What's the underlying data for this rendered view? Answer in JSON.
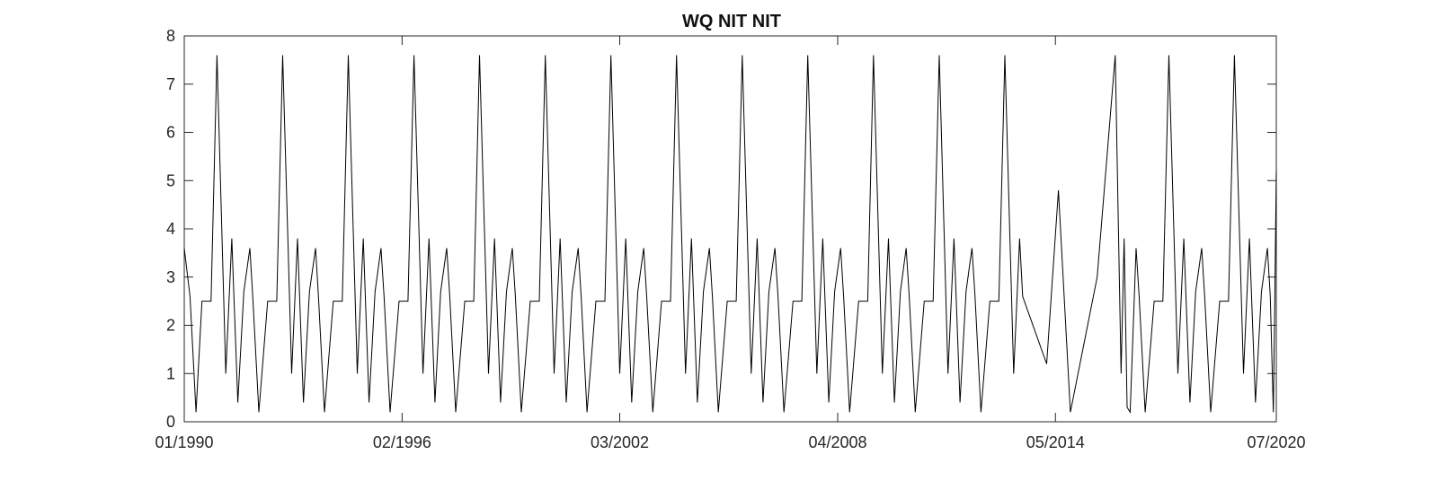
{
  "chart_data": {
    "type": "line",
    "title": "WQ NIT NIT",
    "xlabel": "",
    "ylabel": "",
    "xlim": [
      "1990-01-01",
      "2020-07-01"
    ],
    "ylim": [
      0,
      8
    ],
    "x_ticks": [
      "01/1990",
      "02/1996",
      "03/2002",
      "04/2008",
      "05/2014",
      "07/2020"
    ],
    "y_ticks": [
      "0",
      "1",
      "2",
      "3",
      "4",
      "5",
      "6",
      "7",
      "8"
    ],
    "grid": false,
    "box": true,
    "colors": {
      "line": "#000000",
      "axis": "#262626",
      "background": "#ffffff"
    },
    "pattern_note": "Annual pattern repeats; each point is [date, value].",
    "series": [
      {
        "values": [
          [
            "1990-01-01",
            3.6
          ],
          [
            "1990-03-01",
            2.6
          ],
          [
            "1990-05-01",
            0.2
          ],
          [
            "1990-07-01",
            2.5
          ],
          [
            "1990-10-01",
            2.5
          ],
          [
            "1990-12-01",
            7.6
          ],
          [
            "1991-03-01",
            1.0
          ],
          [
            "1991-05-01",
            3.8
          ],
          [
            "1991-07-01",
            0.4
          ],
          [
            "1991-09-01",
            2.7
          ],
          [
            "1991-11-01",
            3.6
          ],
          [
            "1991-12-01",
            2.6
          ],
          [
            "1992-02-01",
            0.2
          ],
          [
            "1992-05-01",
            2.5
          ],
          [
            "1992-08-01",
            2.5
          ],
          [
            "1992-10-01",
            7.6
          ],
          [
            "1993-01-01",
            1.0
          ],
          [
            "1993-03-01",
            3.8
          ],
          [
            "1993-05-01",
            0.4
          ],
          [
            "1993-07-01",
            2.7
          ],
          [
            "1993-09-01",
            3.6
          ],
          [
            "1993-10-01",
            2.6
          ],
          [
            "1993-12-01",
            0.2
          ],
          [
            "1994-03-01",
            2.5
          ],
          [
            "1994-06-01",
            2.5
          ],
          [
            "1994-08-01",
            7.6
          ],
          [
            "1994-11-01",
            1.0
          ],
          [
            "1995-01-01",
            3.8
          ],
          [
            "1995-03-01",
            0.4
          ],
          [
            "1995-05-01",
            2.7
          ],
          [
            "1995-07-01",
            3.6
          ],
          [
            "1995-08-01",
            2.6
          ],
          [
            "1995-10-01",
            0.2
          ],
          [
            "1996-01-01",
            2.5
          ],
          [
            "1996-04-01",
            2.5
          ],
          [
            "1996-06-01",
            7.6
          ],
          [
            "1996-09-01",
            1.0
          ],
          [
            "1996-11-01",
            3.8
          ],
          [
            "1997-01-01",
            0.4
          ],
          [
            "1997-03-01",
            2.7
          ],
          [
            "1997-05-01",
            3.6
          ],
          [
            "1997-06-01",
            2.6
          ],
          [
            "1997-08-01",
            0.2
          ],
          [
            "1997-11-01",
            2.5
          ],
          [
            "1998-02-01",
            2.5
          ],
          [
            "1998-04-01",
            7.6
          ],
          [
            "1998-07-01",
            1.0
          ],
          [
            "1998-09-01",
            3.8
          ],
          [
            "1998-11-01",
            0.4
          ],
          [
            "1999-01-01",
            2.7
          ],
          [
            "1999-03-01",
            3.6
          ],
          [
            "1999-04-01",
            2.6
          ],
          [
            "1999-06-01",
            0.2
          ],
          [
            "1999-09-01",
            2.5
          ],
          [
            "1999-12-01",
            2.5
          ],
          [
            "2000-02-01",
            7.6
          ],
          [
            "2000-05-01",
            1.0
          ],
          [
            "2000-07-01",
            3.8
          ],
          [
            "2000-09-01",
            0.4
          ],
          [
            "2000-11-01",
            2.7
          ],
          [
            "2001-01-01",
            3.6
          ],
          [
            "2001-02-01",
            2.6
          ],
          [
            "2001-04-01",
            0.2
          ],
          [
            "2001-07-01",
            2.5
          ],
          [
            "2001-10-01",
            2.5
          ],
          [
            "2001-12-01",
            7.6
          ],
          [
            "2002-03-01",
            1.0
          ],
          [
            "2002-05-01",
            3.8
          ],
          [
            "2002-07-01",
            0.4
          ],
          [
            "2002-09-01",
            2.7
          ],
          [
            "2002-11-01",
            3.6
          ],
          [
            "2002-12-01",
            2.6
          ],
          [
            "2003-02-01",
            0.2
          ],
          [
            "2003-05-01",
            2.5
          ],
          [
            "2003-08-01",
            2.5
          ],
          [
            "2003-10-01",
            7.6
          ],
          [
            "2004-01-01",
            1.0
          ],
          [
            "2004-03-01",
            3.8
          ],
          [
            "2004-05-01",
            0.4
          ],
          [
            "2004-07-01",
            2.7
          ],
          [
            "2004-09-01",
            3.6
          ],
          [
            "2004-10-01",
            2.6
          ],
          [
            "2004-12-01",
            0.2
          ],
          [
            "2005-03-01",
            2.5
          ],
          [
            "2005-06-01",
            2.5
          ],
          [
            "2005-08-01",
            7.6
          ],
          [
            "2005-11-01",
            1.0
          ],
          [
            "2006-01-01",
            3.8
          ],
          [
            "2006-03-01",
            0.4
          ],
          [
            "2006-05-01",
            2.7
          ],
          [
            "2006-07-01",
            3.6
          ],
          [
            "2006-08-01",
            2.6
          ],
          [
            "2006-10-01",
            0.2
          ],
          [
            "2007-01-01",
            2.5
          ],
          [
            "2007-04-01",
            2.5
          ],
          [
            "2007-06-01",
            7.6
          ],
          [
            "2007-09-01",
            1.0
          ],
          [
            "2007-11-01",
            3.8
          ],
          [
            "2008-01-01",
            0.4
          ],
          [
            "2008-03-01",
            2.7
          ],
          [
            "2008-05-01",
            3.6
          ],
          [
            "2008-06-01",
            2.6
          ],
          [
            "2008-08-01",
            0.2
          ],
          [
            "2008-11-01",
            2.5
          ],
          [
            "2009-02-01",
            2.5
          ],
          [
            "2009-04-01",
            7.6
          ],
          [
            "2009-07-01",
            1.0
          ],
          [
            "2009-09-01",
            3.8
          ],
          [
            "2009-11-01",
            0.4
          ],
          [
            "2010-01-01",
            2.7
          ],
          [
            "2010-03-01",
            3.6
          ],
          [
            "2010-04-01",
            2.6
          ],
          [
            "2010-06-01",
            0.2
          ],
          [
            "2010-09-01",
            2.5
          ],
          [
            "2010-12-01",
            2.5
          ],
          [
            "2011-02-01",
            7.6
          ],
          [
            "2011-05-01",
            1.0
          ],
          [
            "2011-07-01",
            3.8
          ],
          [
            "2011-09-01",
            0.4
          ],
          [
            "2011-11-01",
            2.7
          ],
          [
            "2012-01-01",
            3.6
          ],
          [
            "2012-02-01",
            2.6
          ],
          [
            "2012-04-01",
            0.2
          ],
          [
            "2012-07-01",
            2.5
          ],
          [
            "2012-10-01",
            2.5
          ],
          [
            "2012-12-01",
            7.6
          ],
          [
            "2013-03-01",
            1.0
          ],
          [
            "2013-05-01",
            3.8
          ],
          [
            "2013-06-01",
            2.6
          ],
          [
            "2014-02-01",
            1.2
          ],
          [
            "2014-06-01",
            4.8
          ],
          [
            "2014-10-01",
            0.2
          ],
          [
            "2015-07-01",
            3.0
          ],
          [
            "2016-01-01",
            7.6
          ],
          [
            "2016-03-01",
            1.0
          ],
          [
            "2016-04-01",
            3.8
          ],
          [
            "2016-05-01",
            0.3
          ],
          [
            "2016-06-01",
            0.2
          ],
          [
            "2016-08-01",
            3.6
          ],
          [
            "2016-09-01",
            2.6
          ],
          [
            "2016-11-01",
            0.2
          ],
          [
            "2017-02-01",
            2.5
          ],
          [
            "2017-05-01",
            2.5
          ],
          [
            "2017-07-01",
            7.6
          ],
          [
            "2017-10-01",
            1.0
          ],
          [
            "2017-12-01",
            3.8
          ],
          [
            "2018-02-01",
            0.4
          ],
          [
            "2018-04-01",
            2.7
          ],
          [
            "2018-06-01",
            3.6
          ],
          [
            "2018-07-01",
            2.6
          ],
          [
            "2018-09-01",
            0.2
          ],
          [
            "2018-12-01",
            2.5
          ],
          [
            "2019-03-01",
            2.5
          ],
          [
            "2019-05-01",
            7.6
          ],
          [
            "2019-08-01",
            1.0
          ],
          [
            "2019-10-01",
            3.8
          ],
          [
            "2019-12-01",
            0.4
          ],
          [
            "2020-02-01",
            2.7
          ],
          [
            "2020-04-01",
            3.6
          ],
          [
            "2020-05-01",
            2.6
          ],
          [
            "2020-06-01",
            0.2
          ],
          [
            "2020-06-15",
            2.5
          ],
          [
            "2020-07-01",
            5.2
          ]
        ]
      }
    ]
  }
}
